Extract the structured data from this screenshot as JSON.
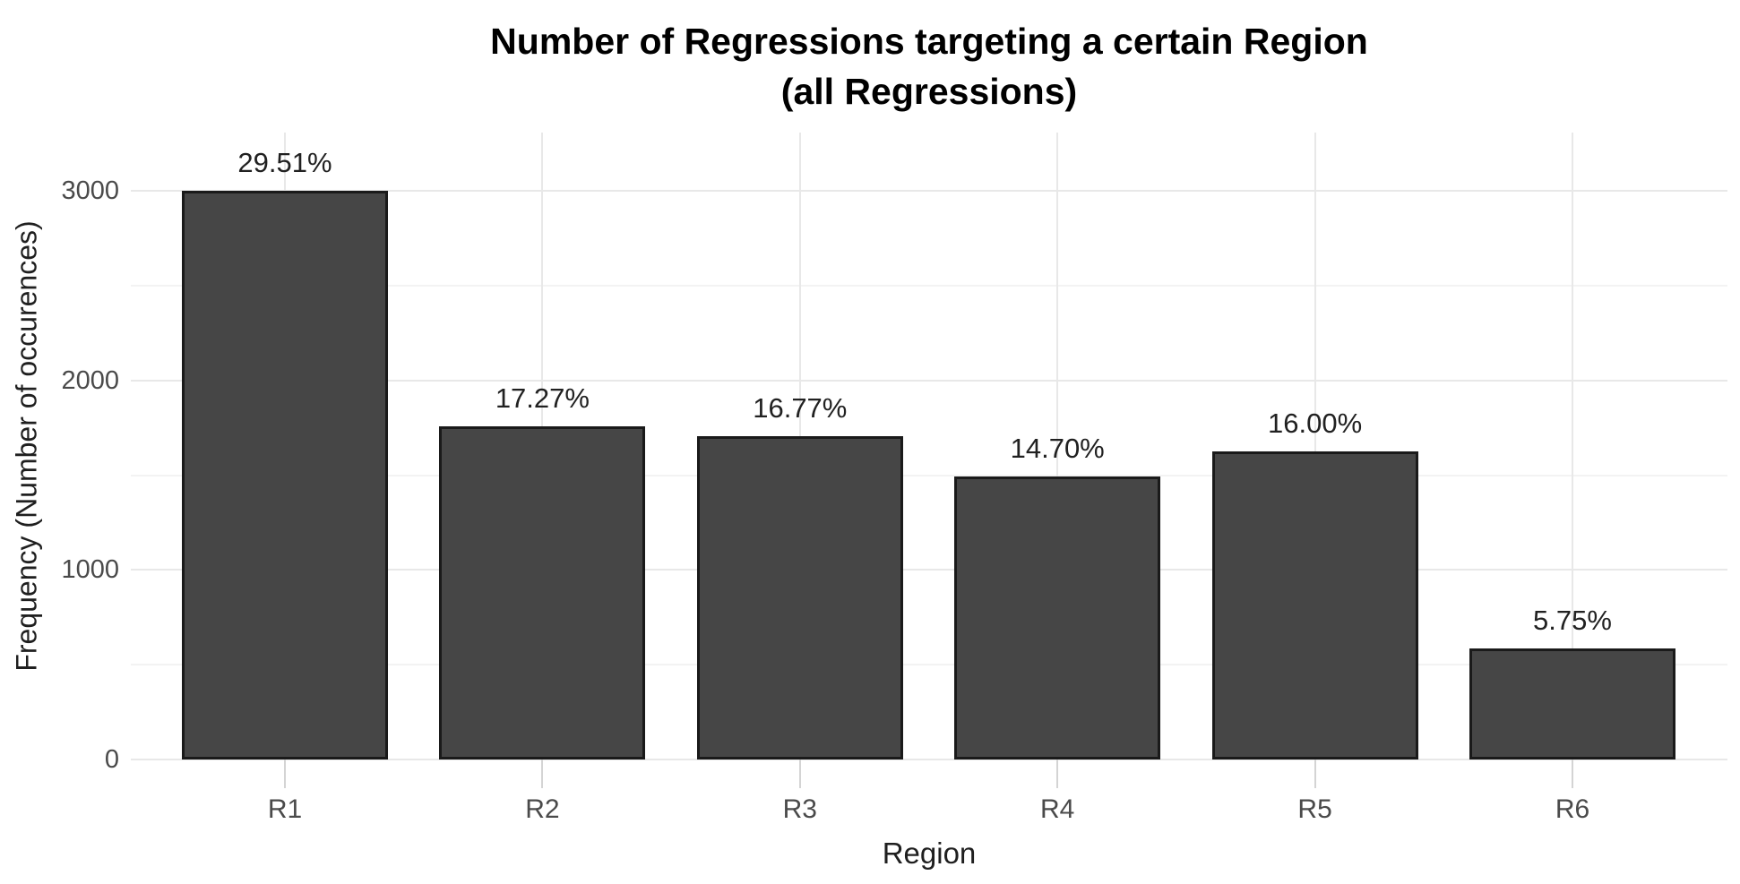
{
  "chart_data": {
    "type": "bar",
    "title": "Number of Regressions targeting a certain Region",
    "subtitle": "(all Regressions)",
    "xlabel": "Region",
    "ylabel": "Frequency (Number of occurences)",
    "categories": [
      "R1",
      "R2",
      "R3",
      "R4",
      "R5",
      "R6"
    ],
    "values": [
      3000,
      1756,
      1705,
      1494,
      1627,
      585
    ],
    "bar_labels": [
      "29.51%",
      "17.27%",
      "16.77%",
      "14.70%",
      "16.00%",
      "5.75%"
    ],
    "y_ticks": [
      0,
      1000,
      2000,
      3000
    ],
    "y_minor_ticks": [
      500,
      1500,
      2500
    ],
    "ylim": [
      0,
      3300
    ],
    "grid": "on",
    "legend": "none",
    "bar_color": "#464646",
    "bar_border_color": "#1a1a1a",
    "major_grid_color": "#e8e8e8",
    "minor_grid_color": "#f3f3f3",
    "tick_mark_color": "#d4d4d4"
  }
}
